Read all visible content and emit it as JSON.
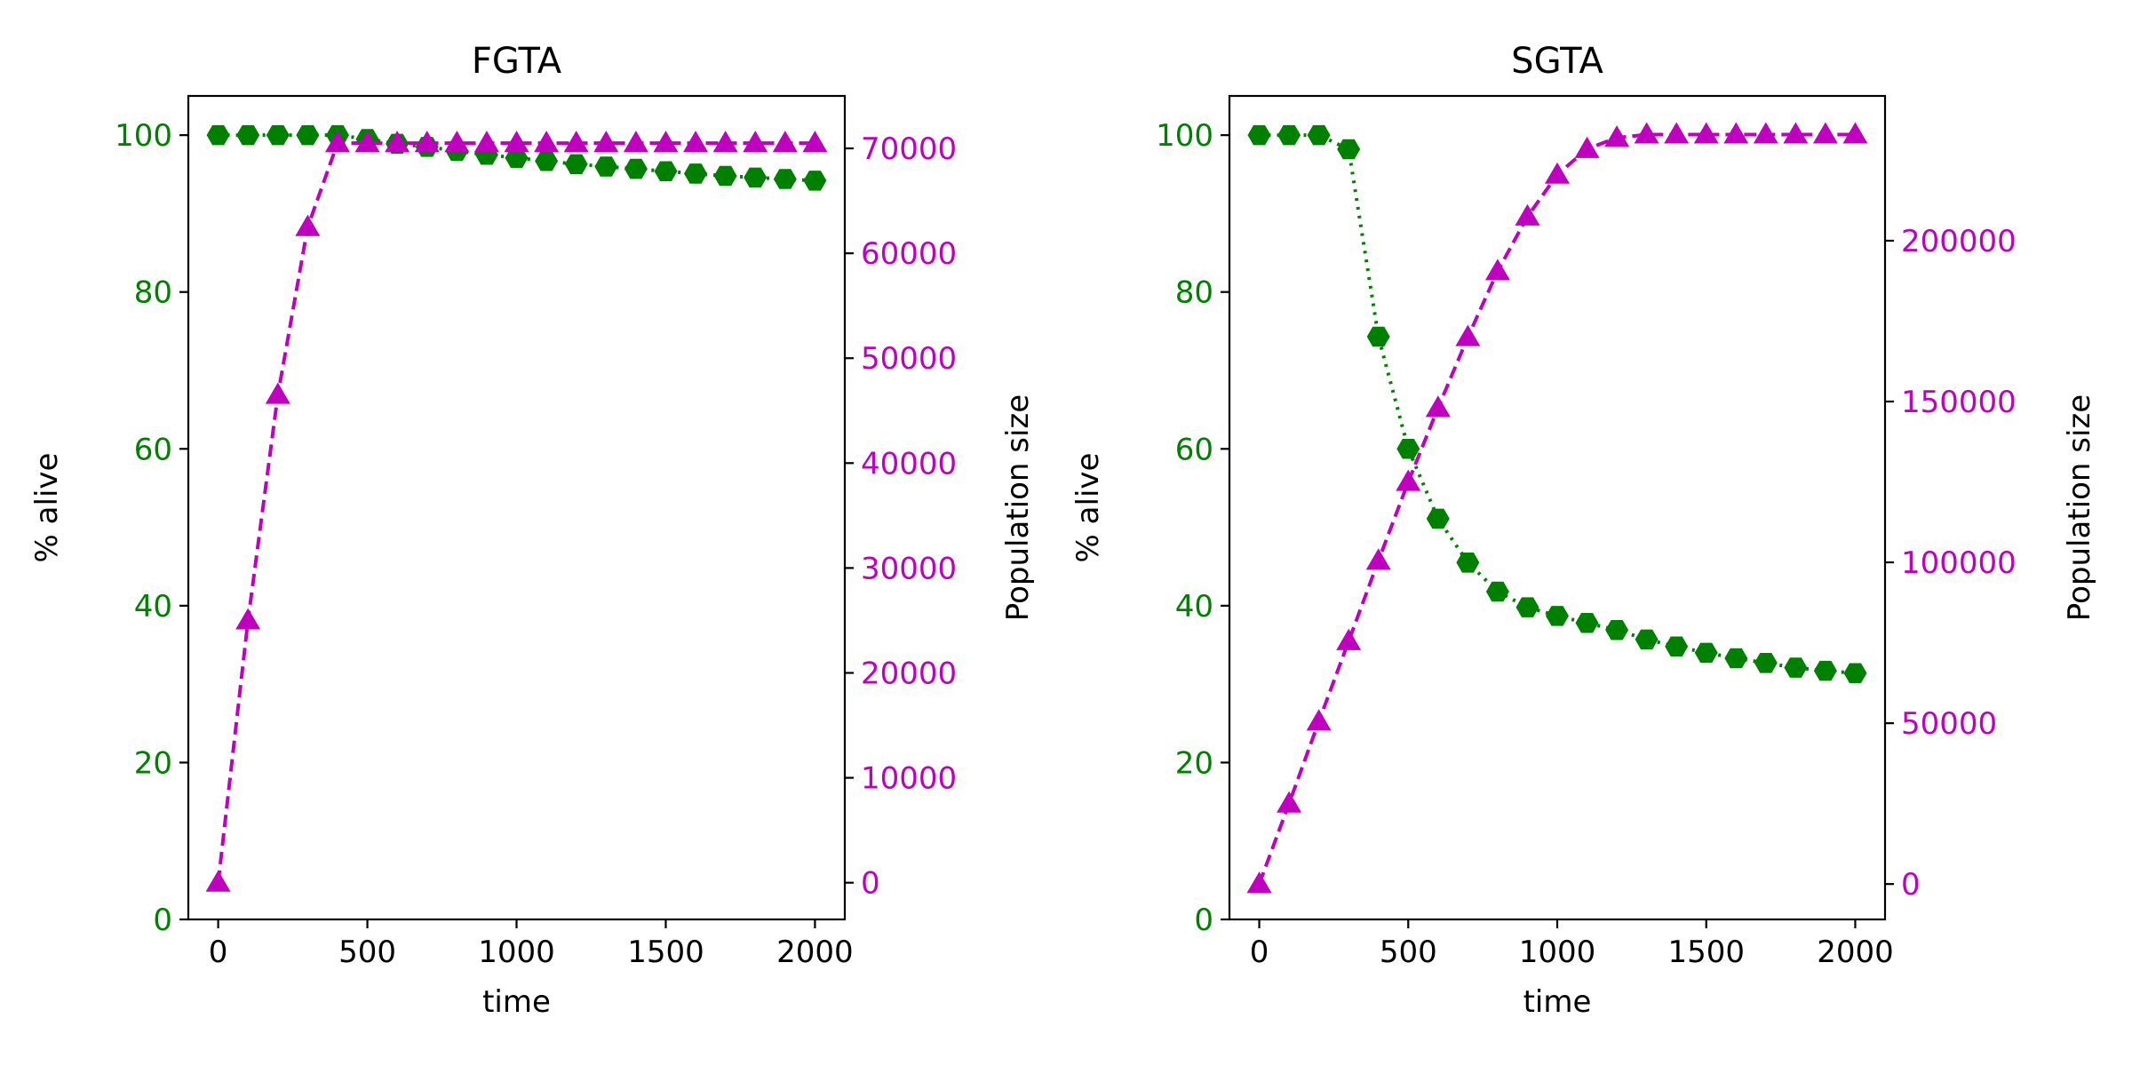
{
  "chart_data": [
    {
      "type": "line",
      "title": "FGTA",
      "xlabel": "time",
      "ylabel": "% alive",
      "y2label": "Population size",
      "xlim": [
        -100,
        2100
      ],
      "ylim": [
        0,
        105
      ],
      "y2lim": [
        -3500,
        75000
      ],
      "xticks": [
        0,
        500,
        1000,
        1500,
        2000
      ],
      "yticks": [
        0,
        20,
        40,
        60,
        80,
        100
      ],
      "y2ticks": [
        0,
        10000,
        20000,
        30000,
        40000,
        50000,
        60000,
        70000
      ],
      "grid": false,
      "x": [
        0,
        100,
        200,
        300,
        400,
        500,
        600,
        700,
        800,
        900,
        1000,
        1100,
        1200,
        1300,
        1400,
        1500,
        1600,
        1700,
        1800,
        1900,
        2000
      ],
      "series": [
        {
          "axis": "left",
          "color": "#008000",
          "marker": "hexagon",
          "linestyle": "dotted",
          "values": [
            100,
            100,
            100,
            100,
            100,
            99.5,
            98.9,
            98.5,
            98.0,
            97.5,
            97.1,
            96.7,
            96.3,
            96.0,
            95.7,
            95.4,
            95.1,
            94.8,
            94.6,
            94.4,
            94.2
          ]
        },
        {
          "axis": "right",
          "color": "#bf00bf",
          "marker": "triangle",
          "linestyle": "dashed",
          "values": [
            0,
            25000,
            46500,
            62500,
            70500,
            70500,
            70500,
            70500,
            70500,
            70500,
            70500,
            70500,
            70500,
            70500,
            70500,
            70500,
            70500,
            70500,
            70500,
            70500,
            70500
          ]
        }
      ]
    },
    {
      "type": "line",
      "title": "SGTA",
      "xlabel": "time",
      "ylabel": "% alive",
      "y2label": "Population size",
      "xlim": [
        -100,
        2100
      ],
      "ylim": [
        0,
        105
      ],
      "y2lim": [
        -11000,
        245000
      ],
      "xticks": [
        0,
        500,
        1000,
        1500,
        2000
      ],
      "yticks": [
        0,
        20,
        40,
        60,
        80,
        100
      ],
      "y2ticks": [
        0,
        50000,
        100000,
        150000,
        200000
      ],
      "grid": false,
      "x": [
        0,
        100,
        200,
        300,
        400,
        500,
        600,
        700,
        800,
        900,
        1000,
        1100,
        1200,
        1300,
        1400,
        1500,
        1600,
        1700,
        1800,
        1900,
        2000
      ],
      "series": [
        {
          "axis": "left",
          "color": "#008000",
          "marker": "hexagon",
          "linestyle": "dotted",
          "values": [
            100,
            100,
            100,
            98.2,
            74.3,
            60.0,
            51.1,
            45.5,
            41.8,
            39.8,
            38.7,
            37.8,
            36.9,
            35.7,
            34.8,
            34.0,
            33.3,
            32.7,
            32.1,
            31.7,
            31.4
          ]
        },
        {
          "axis": "right",
          "color": "#bf00bf",
          "marker": "triangle",
          "linestyle": "dashed",
          "values": [
            0,
            25000,
            50500,
            75500,
            100500,
            125000,
            148000,
            170000,
            190500,
            207500,
            220500,
            228500,
            232000,
            233000,
            233000,
            233000,
            233000,
            233000,
            233000,
            233000,
            233000
          ]
        }
      ]
    }
  ]
}
